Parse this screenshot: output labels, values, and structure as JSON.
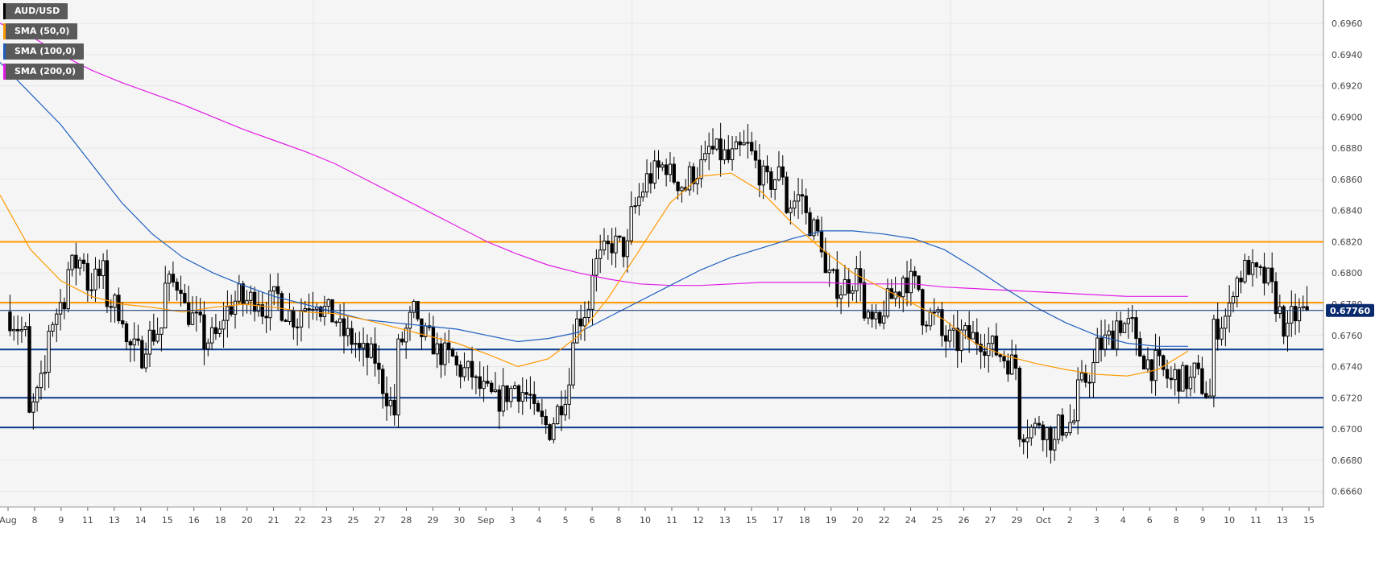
{
  "colors": {
    "background": "#f5f5f5",
    "grid": "#e6e6e6",
    "candle": "#000000",
    "sma50": "#ff9900",
    "sma100": "#1f5fbf",
    "sma200": "#e21ce6",
    "resistance": "#ff9900",
    "support": "#0a3a8c",
    "price_line": "#0a2a6e",
    "price_tag_bg": "#0a2a6e"
  },
  "legend": [
    {
      "id": "symbol",
      "label": "AUD/USD",
      "color": "#000000"
    },
    {
      "id": "sma50",
      "label": "SMA (50,0)",
      "color": "#ff9900"
    },
    {
      "id": "sma100",
      "label": "SMA (100,0)",
      "color": "#1f5fbf"
    },
    {
      "id": "sma200",
      "label": "SMA (200,0)",
      "color": "#e21ce6"
    }
  ],
  "chart_data": {
    "type": "candlestick",
    "symbol": "AUD/USD",
    "ylim": [
      0.665,
      0.6975
    ],
    "yticks": [
      "0.6660",
      "0.6680",
      "0.6700",
      "0.6720",
      "0.6740",
      "0.6760",
      "0.6780",
      "0.6800",
      "0.6820",
      "0.6840",
      "0.6860",
      "0.6880",
      "0.6900",
      "0.6920",
      "0.6940",
      "0.6960"
    ],
    "x_labels": [
      "Aug",
      "8",
      "9",
      "11",
      "13",
      "14",
      "15",
      "16",
      "18",
      "20",
      "21",
      "22",
      "23",
      "25",
      "27",
      "28",
      "29",
      "30",
      "Sep",
      "3",
      "4",
      "5",
      "6",
      "8",
      "10",
      "11",
      "12",
      "13",
      "15",
      "17",
      "18",
      "19",
      "20",
      "22",
      "24",
      "25",
      "26",
      "27",
      "29",
      "Oct",
      "2",
      "3",
      "4",
      "6",
      "8",
      "9",
      "10",
      "11",
      "13",
      "15"
    ],
    "current_price": "0.67760",
    "current_price_value": 0.6776,
    "horizontal_levels": [
      {
        "value": 0.682,
        "kind": "resistance"
      },
      {
        "value": 0.6781,
        "kind": "resistance"
      },
      {
        "value": 0.6751,
        "kind": "support"
      },
      {
        "value": 0.672,
        "kind": "support"
      },
      {
        "value": 0.6701,
        "kind": "support"
      }
    ],
    "price_path": [
      [
        0.6775,
        0.676
      ],
      [
        0.67,
        0.6735
      ],
      [
        0.676,
        0.6785
      ],
      [
        0.68,
        0.681
      ],
      [
        0.679,
        0.68
      ],
      [
        0.6785,
        0.6775
      ],
      [
        0.6755,
        0.6748
      ],
      [
        0.6755,
        0.6765
      ],
      [
        0.679,
        0.6795
      ],
      [
        0.678,
        0.6765
      ],
      [
        0.6755,
        0.676
      ],
      [
        0.677,
        0.6785
      ],
      [
        0.678,
        0.6785
      ],
      [
        0.6775,
        0.6785
      ],
      [
        0.678,
        0.677
      ],
      [
        0.6775,
        0.6785
      ],
      [
        0.678,
        0.677
      ],
      [
        0.6765,
        0.6755
      ],
      [
        0.675,
        0.6745
      ],
      [
        0.674,
        0.671
      ],
      [
        0.6745,
        0.6775
      ],
      [
        0.6765,
        0.6755
      ],
      [
        0.675,
        0.6745
      ],
      [
        0.674,
        0.6735
      ],
      [
        0.673,
        0.672
      ],
      [
        0.6715,
        0.6725
      ],
      [
        0.673,
        0.672
      ],
      [
        0.671,
        0.67
      ],
      [
        0.67,
        0.673
      ],
      [
        0.676,
        0.678
      ],
      [
        0.68,
        0.6815
      ],
      [
        0.682,
        0.6815
      ],
      [
        0.683,
        0.686
      ],
      [
        0.686,
        0.687
      ],
      [
        0.6865,
        0.6855
      ],
      [
        0.686,
        0.687
      ],
      [
        0.688,
        0.6875
      ],
      [
        0.687,
        0.688
      ],
      [
        0.6885,
        0.686
      ],
      [
        0.6855,
        0.6865
      ],
      [
        0.684,
        0.685
      ],
      [
        0.684,
        0.682
      ],
      [
        0.68,
        0.679
      ],
      [
        0.679,
        0.68
      ],
      [
        0.677,
        0.6765
      ],
      [
        0.6775,
        0.679
      ],
      [
        0.68,
        0.679
      ],
      [
        0.6775,
        0.677
      ],
      [
        0.676,
        0.6755
      ],
      [
        0.676,
        0.6758
      ],
      [
        0.676,
        0.675
      ],
      [
        0.675,
        0.674
      ],
      [
        0.67,
        0.67
      ],
      [
        0.671,
        0.669
      ],
      [
        0.67,
        0.6705
      ],
      [
        0.672,
        0.674
      ],
      [
        0.675,
        0.676
      ],
      [
        0.677,
        0.6765
      ],
      [
        0.6755,
        0.674
      ],
      [
        0.6745,
        0.673
      ],
      [
        0.6735,
        0.673
      ],
      [
        0.674,
        0.672
      ],
      [
        0.676,
        0.6775
      ],
      [
        0.679,
        0.6805
      ],
      [
        0.68,
        0.6795
      ],
      [
        0.6795,
        0.676
      ],
      [
        0.677,
        0.6776
      ]
    ],
    "sma50_values": [
      0.685,
      0.6815,
      0.6795,
      0.6785,
      0.678,
      0.6778,
      0.6775,
      0.6778,
      0.678,
      0.6778,
      0.6775,
      0.6774,
      0.677,
      0.6765,
      0.676,
      0.6755,
      0.6748,
      0.674,
      0.6745,
      0.676,
      0.6785,
      0.6815,
      0.6845,
      0.6862,
      0.6864,
      0.6852,
      0.6832,
      0.6815,
      0.68,
      0.679,
      0.678,
      0.677,
      0.6755,
      0.6747,
      0.6742,
      0.6738,
      0.6735,
      0.6734,
      0.6738,
      0.675
    ],
    "sma100_values": [
      0.6935,
      0.6915,
      0.6895,
      0.687,
      0.6845,
      0.6825,
      0.681,
      0.68,
      0.6792,
      0.6785,
      0.678,
      0.6775,
      0.677,
      0.6768,
      0.6766,
      0.6764,
      0.676,
      0.6756,
      0.6758,
      0.6762,
      0.6772,
      0.6782,
      0.6792,
      0.6802,
      0.681,
      0.6816,
      0.6822,
      0.6827,
      0.6827,
      0.6825,
      0.6822,
      0.6815,
      0.6803,
      0.679,
      0.6778,
      0.6768,
      0.676,
      0.6755,
      0.6753,
      0.6753
    ],
    "sma200_values": [
      0.696,
      0.6952,
      0.694,
      0.693,
      0.6922,
      0.6915,
      0.6908,
      0.69,
      0.6892,
      0.6885,
      0.6878,
      0.687,
      0.686,
      0.685,
      0.684,
      0.683,
      0.682,
      0.6812,
      0.6805,
      0.68,
      0.6796,
      0.6793,
      0.6792,
      0.6792,
      0.6793,
      0.6794,
      0.6794,
      0.6794,
      0.6793,
      0.6793,
      0.6793,
      0.6791,
      0.679,
      0.6789,
      0.6788,
      0.6787,
      0.6786,
      0.6785,
      0.6785,
      0.6785
    ]
  }
}
